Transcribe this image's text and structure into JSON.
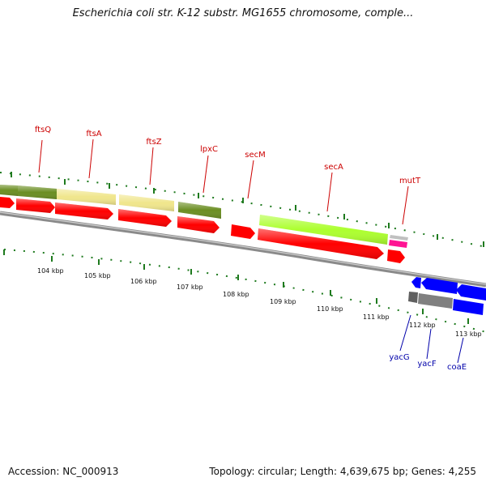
{
  "title": "Escherichia coli str. K-12 substr. MG1655 chromosome, comple...",
  "genes_top": [
    {
      "name": "ftsQ"
    },
    {
      "name": "ftsA"
    },
    {
      "name": "ftsZ"
    },
    {
      "name": "lpxC"
    },
    {
      "name": "secM"
    },
    {
      "name": "secA"
    },
    {
      "name": "mutT"
    }
  ],
  "genes_bottom": [
    {
      "name": "yacG"
    },
    {
      "name": "yacF"
    },
    {
      "name": "coaE"
    }
  ],
  "scale_ticks": [
    "104 kbp",
    "105 kbp",
    "106 kbp",
    "107 kbp",
    "108 kbp",
    "109 kbp",
    "110 kbp",
    "111 kbp",
    "112 kbp",
    "113 kbp"
  ],
  "footer": {
    "accession": "Accession: NC_000913",
    "topology": "Topology: circular; Length: 4,639,675 bp; Genes: 4,255"
  },
  "colors": {
    "cds_red": "#ff0000",
    "olive": "#6b8e23",
    "khaki": "#f0e68c",
    "lime": "#adff2f",
    "pink": "#ff1493",
    "silver": "#c0c0c0",
    "blue": "#0000ff",
    "gray": "#808080",
    "backbone": "#8a8a8a",
    "tick_green": "#1e7a1e",
    "label_red": "#cc0000",
    "label_blue": "#0000aa"
  }
}
